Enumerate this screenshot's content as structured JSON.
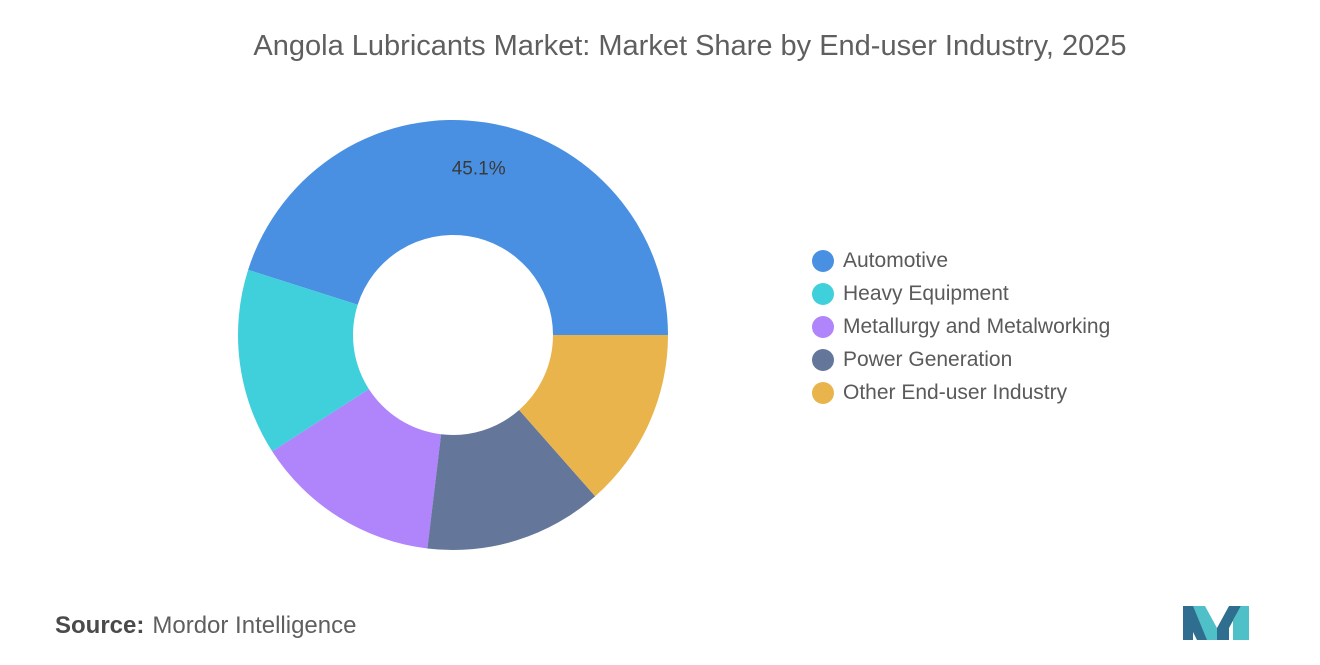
{
  "chart_data": {
    "type": "pie",
    "title": "Angola Lubricants Market: Market Share by End-user Industry, 2025",
    "categories": [
      "Automotive",
      "Heavy Equipment",
      "Metallurgy and Metalworking",
      "Power Generation",
      "Other End-user Industry"
    ],
    "values": [
      45.1,
      14.0,
      14.0,
      13.4,
      13.5
    ],
    "data_labels": [
      "45.1%",
      "",
      "",
      "",
      ""
    ],
    "colors": [
      "#4a90e2",
      "#40d0db",
      "#b084fb",
      "#64779a",
      "#e8b44b"
    ],
    "legend_position": "right",
    "donut": true
  },
  "source": {
    "label": "Source:",
    "text": "Mordor Intelligence"
  },
  "logo": {
    "icon": "mordor-intelligence-logo-icon"
  }
}
